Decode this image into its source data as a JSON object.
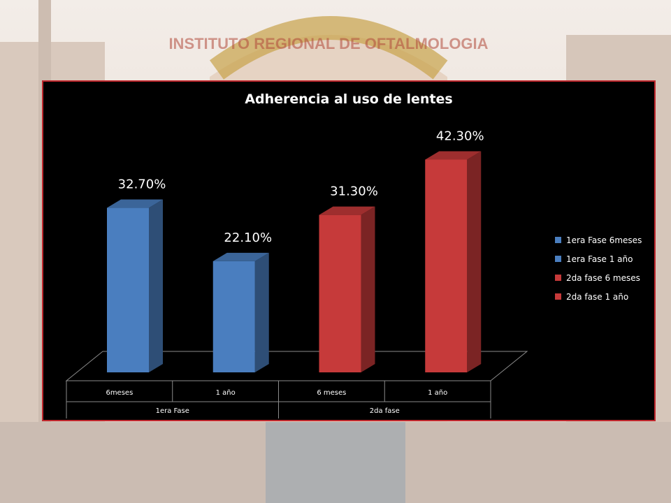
{
  "banner_text": "INSTITUTO REGIONAL DE OFTALMOLOGIA",
  "colors": {
    "blue": "#4a7ebf",
    "red": "#c63a3a",
    "panel_border": "#c0282e"
  },
  "chart_data": {
    "type": "bar",
    "title": "Adherencia al uso de lentes",
    "xlabel": "",
    "ylabel": "",
    "ylim": [
      0,
      50
    ],
    "grid": false,
    "legend_position": "right",
    "groups": [
      "1era Fase",
      "2da fase"
    ],
    "categories": [
      "6meses",
      "1 año",
      "6 meses",
      "1 año"
    ],
    "values": [
      32.7,
      22.1,
      31.3,
      42.3
    ],
    "data_labels": [
      "32.70%",
      "22.10%",
      "31.30%",
      "42.30%"
    ],
    "series": [
      {
        "name": "1era Fase 6meses",
        "values": [
          32.7,
          null,
          null,
          null
        ],
        "color": "#4a7ebf"
      },
      {
        "name": "1era Fase 1 año",
        "values": [
          null,
          22.1,
          null,
          null
        ],
        "color": "#4a7ebf"
      },
      {
        "name": "2da fase 6 meses",
        "values": [
          null,
          null,
          31.3,
          null
        ],
        "color": "#c63a3a"
      },
      {
        "name": "2da fase 1 año",
        "values": [
          null,
          null,
          null,
          42.3
        ],
        "color": "#c63a3a"
      }
    ]
  }
}
